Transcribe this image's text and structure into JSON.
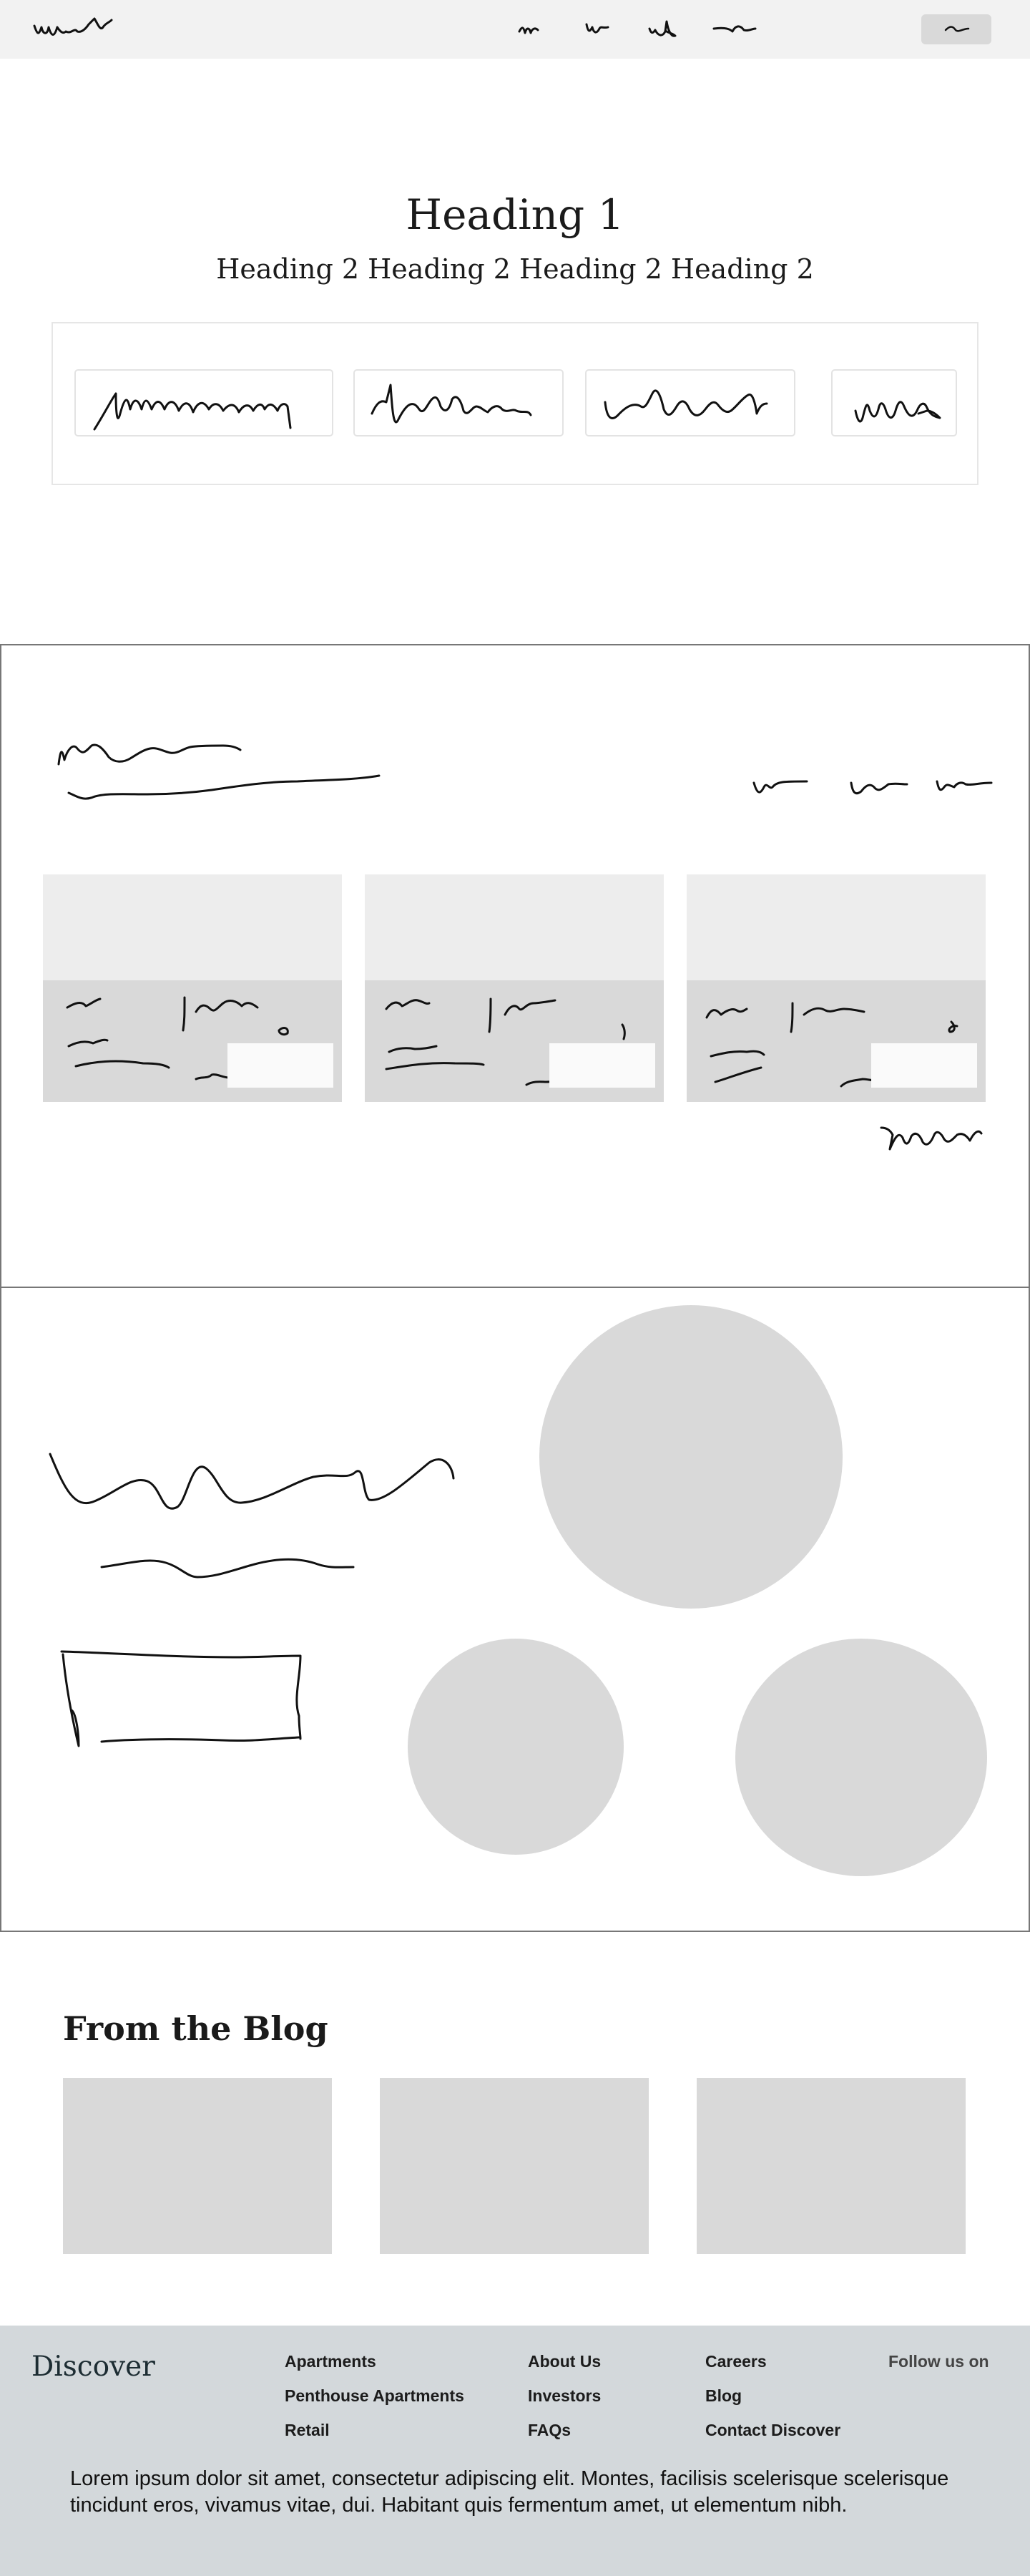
{
  "hero": {
    "heading1": "Heading 1",
    "heading2": "Heading 2 Heading 2 Heading 2 Heading 2"
  },
  "blog": {
    "title": "From the Blog"
  },
  "footer": {
    "brand": "Discover",
    "columns": [
      {
        "links": [
          "Apartments",
          "Penthouse Apartments",
          "Retail"
        ]
      },
      {
        "links": [
          "About Us",
          "Investors",
          "FAQs"
        ]
      },
      {
        "links": [
          "Careers",
          "Blog",
          "Contact Discover"
        ]
      }
    ],
    "follow": "Follow us on",
    "description": "Lorem ipsum dolor sit amet, consectetur adipiscing elit. Montes, facilisis scelerisque scelerisque tincidunt eros, vivamus vitae, dui. Habitant quis fermentum amet, ut elementum nibh."
  },
  "colors": {
    "header_bg": "#f2f2f2",
    "placeholder_gray": "#d9d9d9",
    "card_top_gray": "#ededed",
    "footer_bg": "#d3d8db"
  },
  "icons": {
    "logo": "scribble-logo-icon",
    "nav_items": "scribble-text-icon",
    "header_button": "scribble-text-icon"
  }
}
